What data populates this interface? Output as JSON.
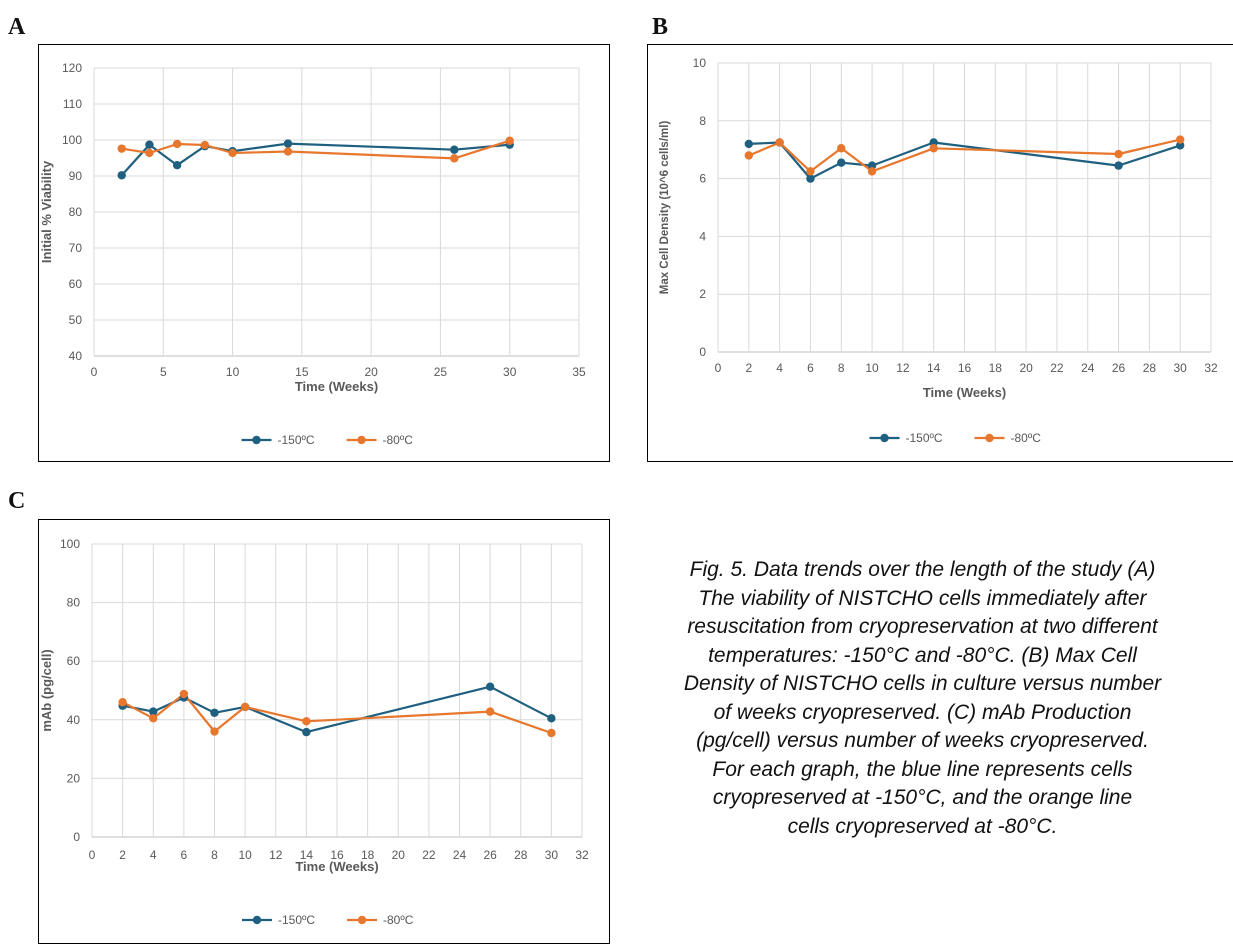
{
  "panels": [
    {
      "letter": "A",
      "chart_data": {
        "type": "line",
        "xlabel": "Time (Weeks)",
        "ylabel": "Initial % Viability",
        "xlim": [
          0,
          35
        ],
        "xticks": [
          0,
          5,
          10,
          15,
          20,
          25,
          30,
          35
        ],
        "ylim": [
          40,
          120
        ],
        "yticks": [
          40,
          50,
          60,
          70,
          80,
          90,
          100,
          110,
          120
        ],
        "grid": true,
        "legend_position": "bottom",
        "series": [
          {
            "name": "-150ºC",
            "color": "#1f5f7f",
            "x": [
              2,
              4,
              6,
              8,
              10,
              14,
              26,
              30
            ],
            "y": [
              90.2,
              98.7,
              93.0,
              98.3,
              96.9,
              99.0,
              97.3,
              98.7
            ]
          },
          {
            "name": "-80ºC",
            "color": "#e8772e",
            "x": [
              2,
              4,
              6,
              8,
              10,
              14,
              26,
              30
            ],
            "y": [
              97.6,
              96.4,
              98.9,
              98.6,
              96.4,
              96.8,
              94.9,
              99.8
            ]
          }
        ]
      }
    },
    {
      "letter": "B",
      "chart_data": {
        "type": "line",
        "xlabel": "Time (Weeks)",
        "ylabel": "Max Cell Density (10^6 cells/ml)",
        "xlim": [
          0,
          32
        ],
        "xticks": [
          0,
          2,
          4,
          6,
          8,
          10,
          12,
          14,
          16,
          18,
          20,
          22,
          24,
          26,
          28,
          30,
          32
        ],
        "ylim": [
          0,
          10
        ],
        "yticks": [
          0,
          2,
          4,
          6,
          8,
          10
        ],
        "grid": true,
        "legend_position": "bottom",
        "series": [
          {
            "name": "-150ºC",
            "color": "#1f5f7f",
            "x": [
              2,
              4,
              6,
              8,
              10,
              14,
              26,
              30
            ],
            "y": [
              7.2,
              7.25,
              6.0,
              6.55,
              6.45,
              7.25,
              6.45,
              7.15
            ]
          },
          {
            "name": "-80ºC",
            "color": "#e8772e",
            "x": [
              2,
              4,
              6,
              8,
              10,
              14,
              26,
              30
            ],
            "y": [
              6.8,
              7.25,
              6.25,
              7.05,
              6.25,
              7.05,
              6.85,
              7.35
            ]
          }
        ]
      }
    },
    {
      "letter": "C",
      "chart_data": {
        "type": "line",
        "xlabel": "Time (Weeks)",
        "ylabel": "mAb (pg/cell)",
        "xlim": [
          0,
          32
        ],
        "xticks": [
          0,
          2,
          4,
          6,
          8,
          10,
          12,
          14,
          16,
          18,
          20,
          22,
          24,
          26,
          28,
          30,
          32
        ],
        "ylim": [
          0,
          100
        ],
        "yticks": [
          0,
          20,
          40,
          60,
          80,
          100
        ],
        "grid": true,
        "legend_position": "bottom",
        "series": [
          {
            "name": "-150ºC",
            "color": "#1f5f7f",
            "x": [
              2,
              4,
              6,
              8,
              10,
              14,
              26,
              30
            ],
            "y": [
              44.8,
              42.8,
              47.6,
              42.4,
              44.4,
              35.8,
              51.3,
              40.5
            ]
          },
          {
            "name": "-80ºC",
            "color": "#e8772e",
            "x": [
              2,
              4,
              6,
              8,
              10,
              14,
              26,
              30
            ],
            "y": [
              46.0,
              40.5,
              48.8,
              36.0,
              44.4,
              39.5,
              42.8,
              35.5
            ]
          }
        ]
      }
    }
  ],
  "caption_lines": [
    "Fig. 5. Data trends over the length of the study (A)",
    "The viability of NISTCHO cells immediately after",
    "resuscitation from cryopreservation at two different",
    "temperatures: -150°C and -80°C. (B) Max Cell",
    "Density of NISTCHO cells in culture versus number",
    "of weeks cryopreserved. (C) mAb Production",
    "(pg/cell) versus number of weeks cryopreserved.",
    "For each graph, the blue line represents cells",
    "cryopreserved at -150°C, and the orange line",
    "cells cryopreserved at -80°C."
  ]
}
